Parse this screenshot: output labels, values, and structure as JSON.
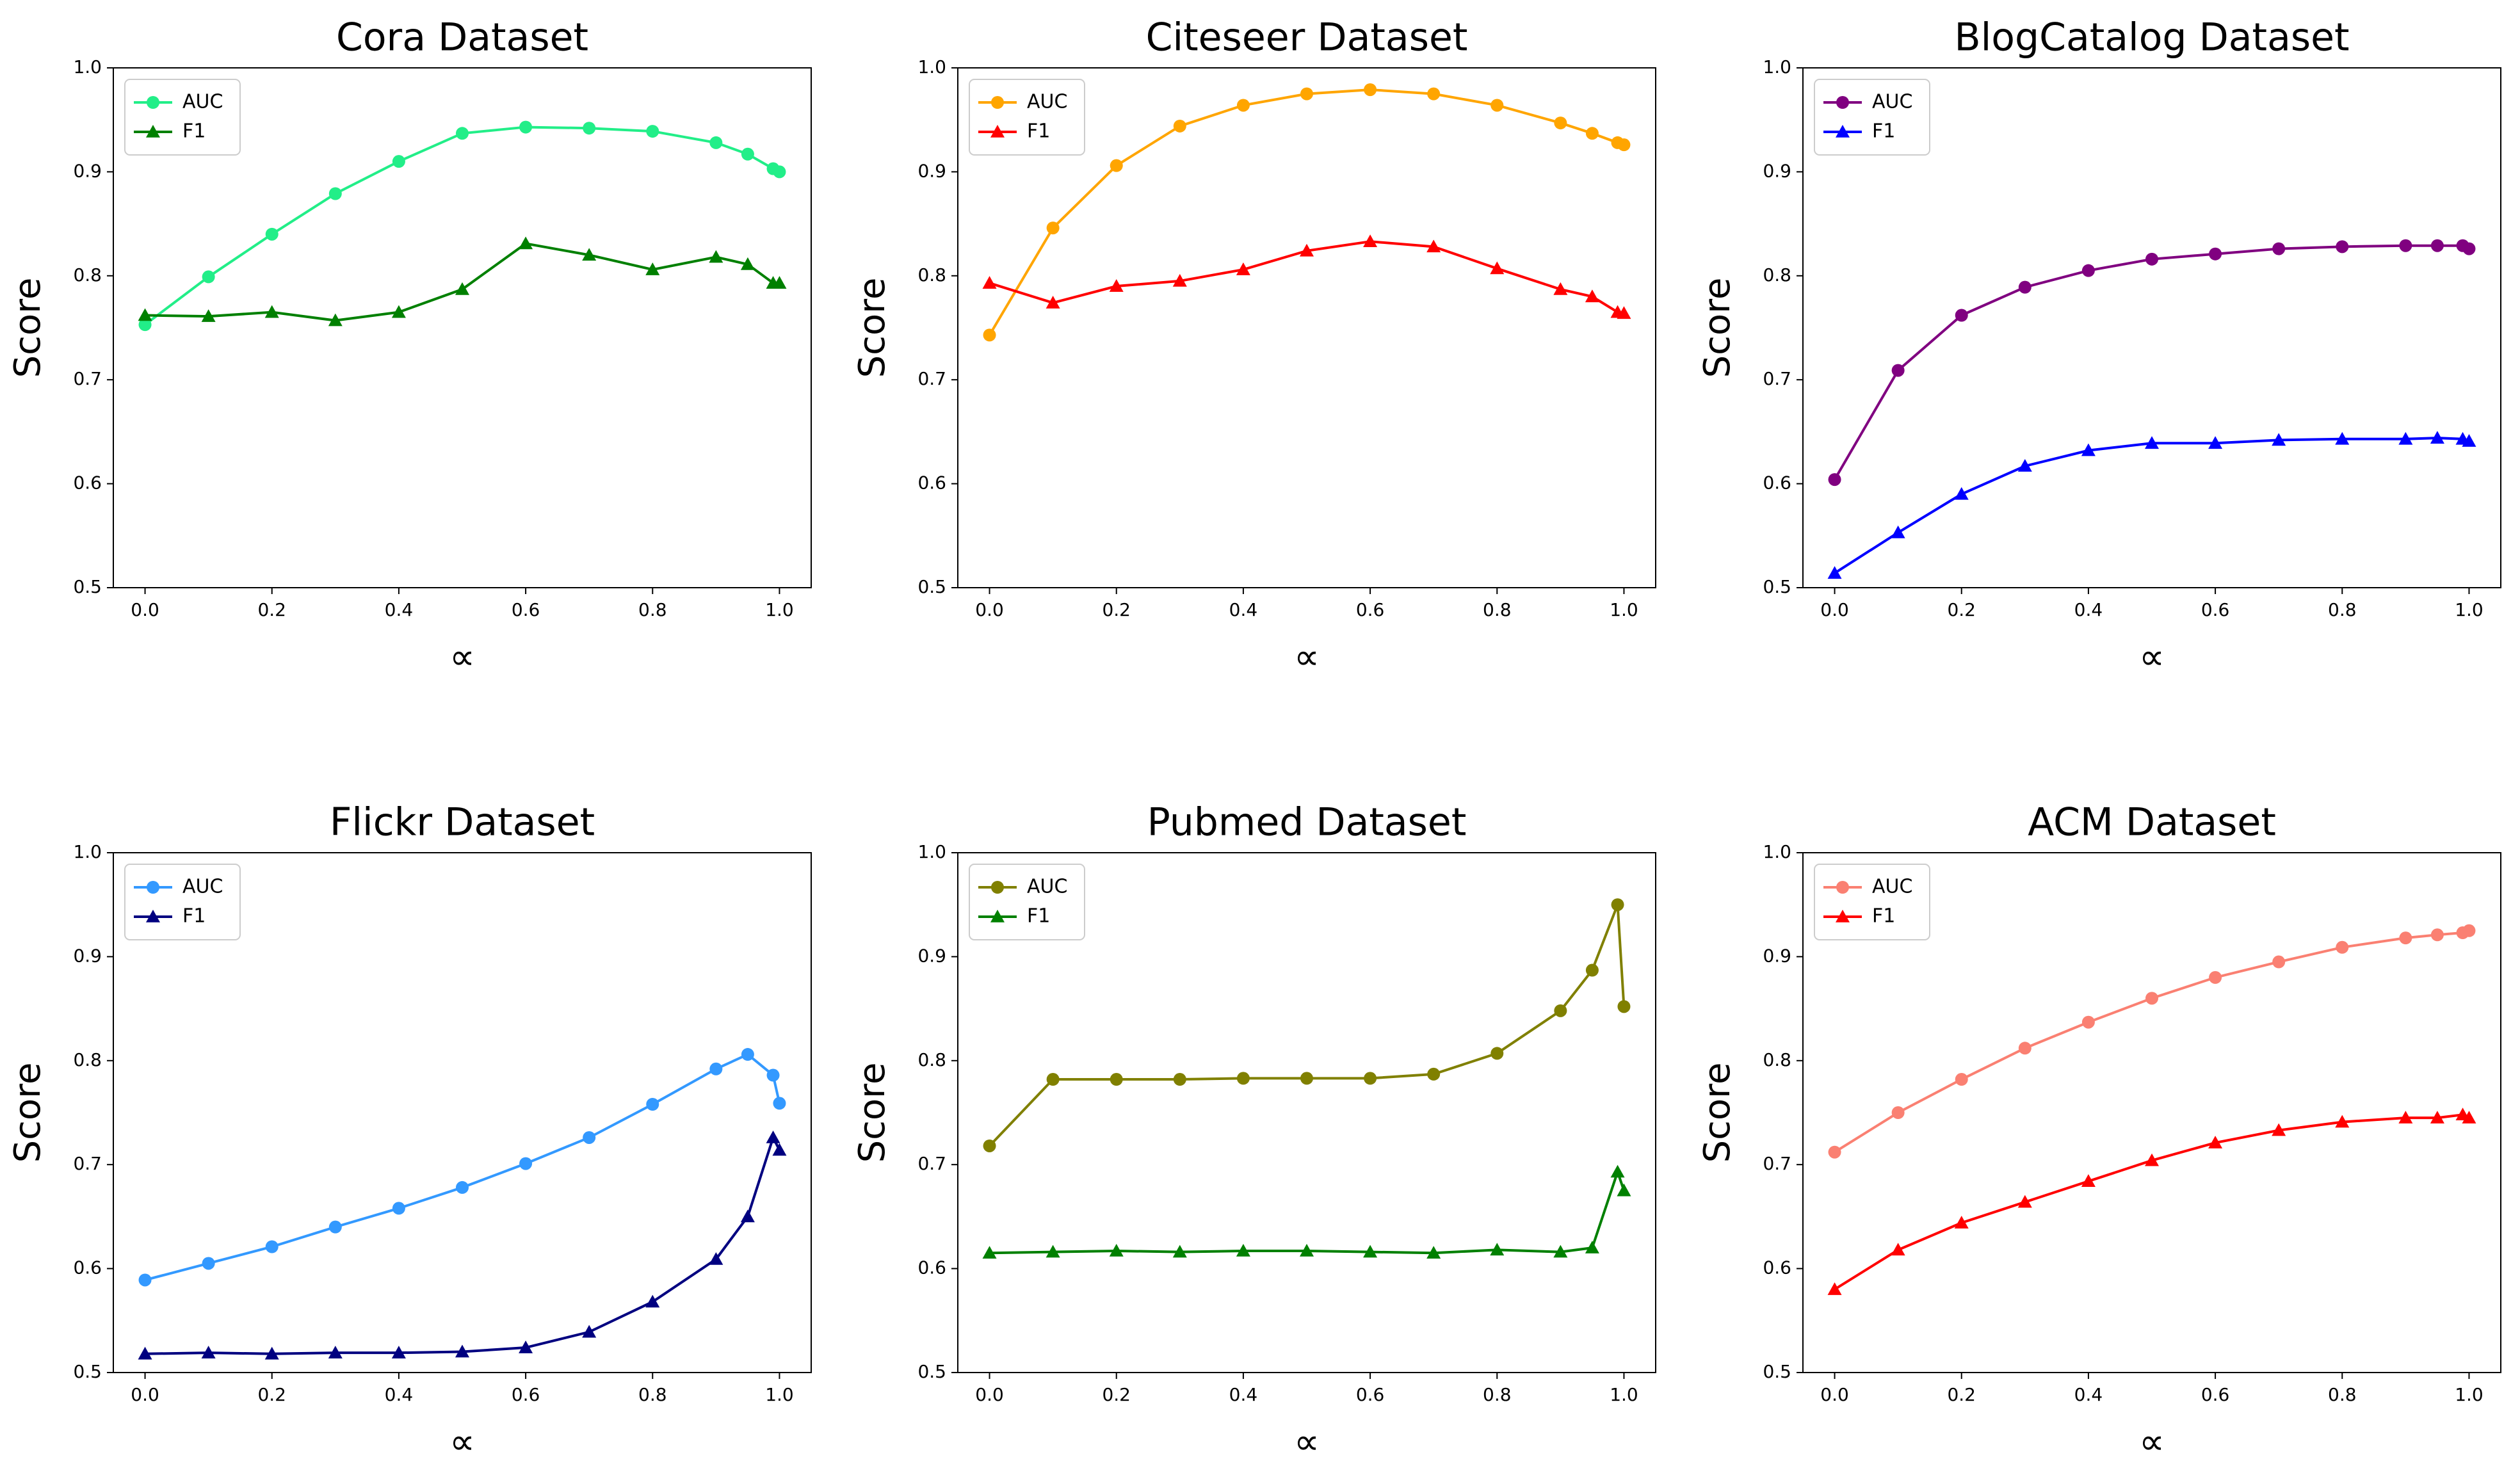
{
  "chart_data": [
    {
      "type": "line",
      "title": "Cora Dataset",
      "xlabel": "∝",
      "ylabel": "Score",
      "legend": "upper left",
      "x": [
        0,
        0.1,
        0.2,
        0.3,
        0.4,
        0.5,
        0.6,
        0.7,
        0.8,
        0.9,
        0.95,
        0.99,
        1.0
      ],
      "series": [
        {
          "name": "AUC",
          "color": "#22ee88",
          "marker": "circle",
          "values": [
            0.753,
            0.799,
            0.84,
            0.879,
            0.91,
            0.937,
            0.943,
            0.942,
            0.939,
            0.928,
            0.917,
            0.903,
            0.9
          ]
        },
        {
          "name": "F1",
          "color": "#008000",
          "marker": "triangle",
          "values": [
            0.762,
            0.761,
            0.765,
            0.757,
            0.765,
            0.787,
            0.831,
            0.82,
            0.806,
            0.818,
            0.811,
            0.793,
            0.793
          ]
        }
      ],
      "xlim": [
        -0.05,
        1.05
      ],
      "xticks": [
        {
          "value": 0,
          "label": "0.0"
        },
        0.2,
        0.4,
        0.6,
        0.8,
        {
          "value": 1,
          "label": "1.0"
        }
      ],
      "ylim": [
        0.5,
        1.0
      ],
      "yticks": [
        0.5,
        0.6,
        0.7,
        0.8,
        0.9,
        {
          "value": 1,
          "label": "1.0"
        }
      ]
    },
    {
      "type": "line",
      "title": "Citeseer Dataset",
      "xlabel": "∝",
      "ylabel": "Score",
      "legend": "upper left",
      "x": [
        0,
        0.1,
        0.2,
        0.3,
        0.4,
        0.5,
        0.6,
        0.7,
        0.8,
        0.9,
        0.95,
        0.99,
        1.0
      ],
      "series": [
        {
          "name": "AUC",
          "color": "#ffa500",
          "marker": "circle",
          "values": [
            0.743,
            0.846,
            0.906,
            0.944,
            0.964,
            0.975,
            0.979,
            0.975,
            0.964,
            0.947,
            0.937,
            0.928,
            0.926
          ]
        },
        {
          "name": "F1",
          "color": "#ff0000",
          "marker": "triangle",
          "values": [
            0.793,
            0.774,
            0.79,
            0.795,
            0.806,
            0.824,
            0.833,
            0.828,
            0.807,
            0.787,
            0.78,
            0.765,
            0.764
          ]
        }
      ],
      "xlim": [
        -0.05,
        1.05
      ],
      "xticks": [
        {
          "value": 0,
          "label": "0.0"
        },
        0.2,
        0.4,
        0.6,
        0.8,
        {
          "value": 1,
          "label": "1.0"
        }
      ],
      "ylim": [
        0.5,
        1.0
      ],
      "yticks": [
        0.5,
        0.6,
        0.7,
        0.8,
        0.9,
        {
          "value": 1,
          "label": "1.0"
        }
      ]
    },
    {
      "type": "line",
      "title": "BlogCatalog Dataset",
      "xlabel": "∝",
      "ylabel": "Score",
      "legend": "upper left",
      "x": [
        0,
        0.1,
        0.2,
        0.3,
        0.4,
        0.5,
        0.6,
        0.7,
        0.8,
        0.9,
        0.95,
        0.99,
        1.0
      ],
      "series": [
        {
          "name": "AUC",
          "color": "#800080",
          "marker": "circle",
          "values": [
            0.604,
            0.709,
            0.762,
            0.789,
            0.805,
            0.816,
            0.821,
            0.826,
            0.828,
            0.829,
            0.829,
            0.829,
            0.826
          ]
        },
        {
          "name": "F1",
          "color": "#0000ff",
          "marker": "triangle",
          "values": [
            0.514,
            0.553,
            0.59,
            0.617,
            0.632,
            0.639,
            0.639,
            0.642,
            0.643,
            0.643,
            0.644,
            0.643,
            0.641
          ]
        }
      ],
      "xlim": [
        -0.05,
        1.05
      ],
      "xticks": [
        {
          "value": 0,
          "label": "0.0"
        },
        0.2,
        0.4,
        0.6,
        0.8,
        {
          "value": 1,
          "label": "1.0"
        }
      ],
      "ylim": [
        0.5,
        1.0
      ],
      "yticks": [
        0.5,
        0.6,
        0.7,
        0.8,
        0.9,
        {
          "value": 1,
          "label": "1.0"
        }
      ]
    },
    {
      "type": "line",
      "title": "Flickr Dataset",
      "xlabel": "∝",
      "ylabel": "Score",
      "legend": "upper left",
      "x": [
        0,
        0.1,
        0.2,
        0.3,
        0.4,
        0.5,
        0.6,
        0.7,
        0.8,
        0.9,
        0.95,
        0.99,
        1.0
      ],
      "series": [
        {
          "name": "AUC",
          "color": "#3399ff",
          "marker": "circle",
          "values": [
            0.589,
            0.605,
            0.621,
            0.64,
            0.658,
            0.678,
            0.701,
            0.726,
            0.758,
            0.792,
            0.806,
            0.786,
            0.759
          ]
        },
        {
          "name": "F1",
          "color": "#000080",
          "marker": "triangle",
          "values": [
            0.518,
            0.519,
            0.518,
            0.519,
            0.519,
            0.52,
            0.524,
            0.539,
            0.568,
            0.609,
            0.65,
            0.726,
            0.714
          ]
        }
      ],
      "xlim": [
        -0.05,
        1.05
      ],
      "xticks": [
        {
          "value": 0,
          "label": "0.0"
        },
        0.2,
        0.4,
        0.6,
        0.8,
        {
          "value": 1,
          "label": "1.0"
        }
      ],
      "ylim": [
        0.5,
        1.0
      ],
      "yticks": [
        0.5,
        0.6,
        0.7,
        0.8,
        0.9,
        {
          "value": 1,
          "label": "1.0"
        }
      ]
    },
    {
      "type": "line",
      "title": "Pubmed Dataset",
      "xlabel": "∝",
      "ylabel": "Score",
      "legend": "upper left",
      "x": [
        0,
        0.1,
        0.2,
        0.3,
        0.4,
        0.5,
        0.6,
        0.7,
        0.8,
        0.9,
        0.95,
        0.99,
        1.0
      ],
      "series": [
        {
          "name": "AUC",
          "color": "#808000",
          "marker": "circle",
          "values": [
            0.718,
            0.782,
            0.782,
            0.782,
            0.783,
            0.783,
            0.783,
            0.787,
            0.807,
            0.848,
            0.887,
            0.95,
            0.852
          ]
        },
        {
          "name": "F1",
          "color": "#008000",
          "marker": "triangle",
          "values": [
            0.615,
            0.616,
            0.617,
            0.616,
            0.617,
            0.617,
            0.616,
            0.615,
            0.618,
            0.616,
            0.62,
            0.693,
            0.675
          ]
        }
      ],
      "xlim": [
        -0.05,
        1.05
      ],
      "xticks": [
        {
          "value": 0,
          "label": "0.0"
        },
        0.2,
        0.4,
        0.6,
        0.8,
        {
          "value": 1,
          "label": "1.0"
        }
      ],
      "ylim": [
        0.5,
        1.0
      ],
      "yticks": [
        0.5,
        0.6,
        0.7,
        0.8,
        0.9,
        {
          "value": 1,
          "label": "1.0"
        }
      ]
    },
    {
      "type": "line",
      "title": "ACM Dataset",
      "xlabel": "∝",
      "ylabel": "Score",
      "legend": "upper left",
      "x": [
        0,
        0.1,
        0.2,
        0.3,
        0.4,
        0.5,
        0.6,
        0.7,
        0.8,
        0.9,
        0.95,
        0.99,
        1.0
      ],
      "series": [
        {
          "name": "AUC",
          "color": "#fa8072",
          "marker": "circle",
          "values": [
            0.712,
            0.75,
            0.782,
            0.812,
            0.837,
            0.86,
            0.88,
            0.895,
            0.909,
            0.918,
            0.921,
            0.923,
            0.925
          ]
        },
        {
          "name": "F1",
          "color": "#ff0000",
          "marker": "triangle",
          "values": [
            0.58,
            0.618,
            0.644,
            0.664,
            0.684,
            0.704,
            0.721,
            0.733,
            0.741,
            0.745,
            0.745,
            0.748,
            0.745
          ]
        }
      ],
      "xlim": [
        -0.05,
        1.05
      ],
      "xticks": [
        {
          "value": 0,
          "label": "0.0"
        },
        0.2,
        0.4,
        0.6,
        0.8,
        {
          "value": 1,
          "label": "1.0"
        }
      ],
      "ylim": [
        0.5,
        1.0
      ],
      "yticks": [
        0.5,
        0.6,
        0.7,
        0.8,
        0.9,
        {
          "value": 1,
          "label": "1.0"
        }
      ]
    }
  ]
}
